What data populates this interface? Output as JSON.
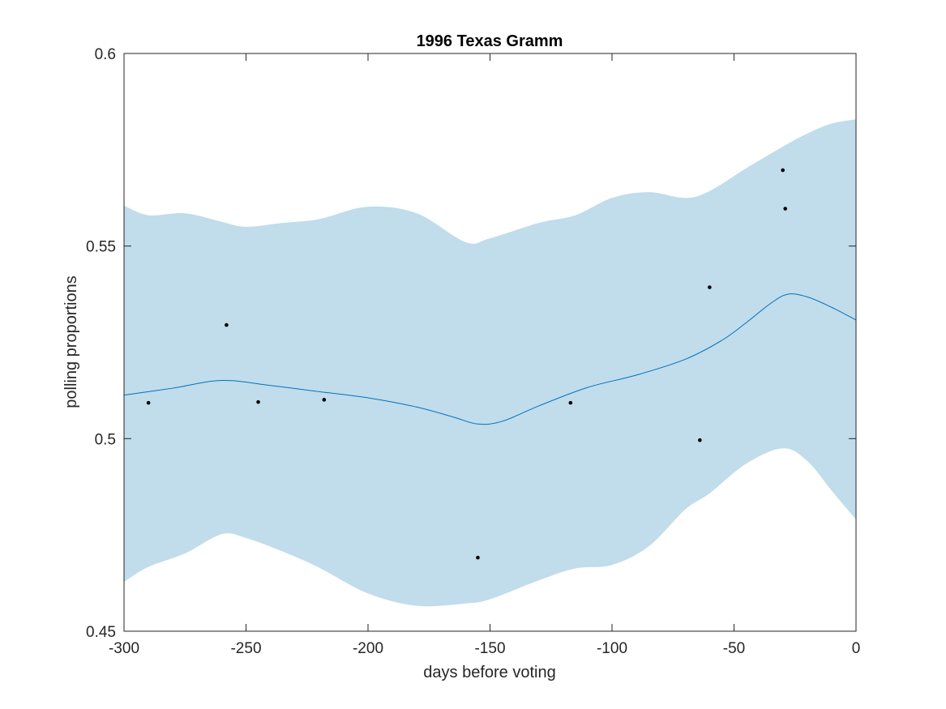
{
  "chart_data": {
    "type": "line",
    "title": "1996 Texas Gramm",
    "xlabel": "days before voting",
    "ylabel": "polling proportions",
    "xlim": [
      -300,
      0
    ],
    "ylim": [
      0.45,
      0.6
    ],
    "grid": false,
    "xticks": [
      -300,
      -250,
      -200,
      -150,
      -100,
      -50,
      0
    ],
    "yticks": [
      0.45,
      0.5,
      0.55,
      0.6
    ],
    "colors": {
      "band": "#c1dcea",
      "line": "#0072bd",
      "points": "#000000"
    },
    "band": {
      "x": [
        -300,
        -290,
        -275,
        -260,
        -250,
        -235,
        -220,
        -200,
        -180,
        -160,
        -150,
        -130,
        -115,
        -100,
        -85,
        -70,
        -60,
        -45,
        -30,
        -20,
        -10,
        0
      ],
      "upper": [
        0.5605,
        0.558,
        0.5585,
        0.5563,
        0.555,
        0.556,
        0.557,
        0.5602,
        0.5585,
        0.551,
        0.552,
        0.556,
        0.558,
        0.5625,
        0.564,
        0.5625,
        0.5643,
        0.5702,
        0.5758,
        0.5792,
        0.5818,
        0.5829
      ],
      "lower": [
        0.4628,
        0.4667,
        0.4702,
        0.4752,
        0.4742,
        0.4707,
        0.4665,
        0.4598,
        0.4566,
        0.4572,
        0.4583,
        0.4632,
        0.4663,
        0.4672,
        0.472,
        0.4816,
        0.4858,
        0.4935,
        0.4975,
        0.4942,
        0.4865,
        0.479
      ]
    },
    "fit": {
      "x": [
        -300,
        -280,
        -260,
        -240,
        -220,
        -200,
        -180,
        -165,
        -155,
        -145,
        -130,
        -110,
        -90,
        -70,
        -55,
        -45,
        -35,
        -28,
        -20,
        -10,
        0
      ],
      "y": [
        0.5113,
        0.5131,
        0.5151,
        0.5138,
        0.5122,
        0.5106,
        0.5082,
        0.5056,
        0.5038,
        0.5045,
        0.5085,
        0.5133,
        0.5165,
        0.5206,
        0.5255,
        0.5301,
        0.5351,
        0.5375,
        0.5368,
        0.5341,
        0.5308
      ]
    },
    "points": {
      "x": [
        -290,
        -258,
        -245,
        -218,
        -155,
        -117,
        -64,
        -60,
        -30,
        -29
      ],
      "y": [
        0.5093,
        0.5295,
        0.5095,
        0.5101,
        0.4691,
        0.5093,
        0.4996,
        0.5393,
        0.5697,
        0.5597
      ]
    }
  }
}
